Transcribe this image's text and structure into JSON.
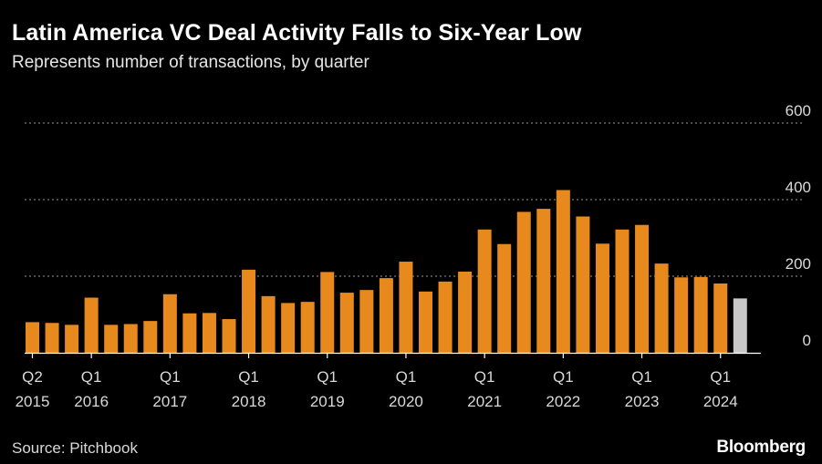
{
  "header": {
    "title": "Latin America VC Deal Activity Falls to Six-Year Low",
    "subtitle": "Represents number of transactions, by quarter"
  },
  "footer": {
    "source": "Source: Pitchbook",
    "logo": "Bloomberg"
  },
  "colors": {
    "bar": "#e8891d",
    "bar_latest": "#c8c8c8",
    "grid": "#666666",
    "axis": "#ffffff",
    "background": "#000000"
  },
  "chart_data": {
    "type": "bar",
    "title": "Latin America VC Deal Activity Falls to Six-Year Low",
    "subtitle": "Represents number of transactions, by quarter",
    "xlabel": "",
    "ylabel": "",
    "ylim": [
      0,
      600
    ],
    "y_ticks": [
      0,
      200,
      400,
      600
    ],
    "y_axis_side": "right",
    "grid": "horizontal dotted",
    "categories": [
      "Q2 2015",
      "Q3 2015",
      "Q4 2015",
      "Q1 2016",
      "Q2 2016",
      "Q3 2016",
      "Q4 2016",
      "Q1 2017",
      "Q2 2017",
      "Q3 2017",
      "Q4 2017",
      "Q1 2018",
      "Q2 2018",
      "Q3 2018",
      "Q4 2018",
      "Q1 2019",
      "Q2 2019",
      "Q3 2019",
      "Q4 2019",
      "Q1 2020",
      "Q2 2020",
      "Q3 2020",
      "Q4 2020",
      "Q1 2021",
      "Q2 2021",
      "Q3 2021",
      "Q4 2021",
      "Q1 2022",
      "Q2 2022",
      "Q3 2022",
      "Q4 2022",
      "Q1 2023",
      "Q2 2023",
      "Q3 2023",
      "Q4 2023",
      "Q1 2024",
      "Q2 2024"
    ],
    "values": [
      80,
      78,
      73,
      144,
      73,
      75,
      83,
      153,
      103,
      104,
      88,
      217,
      148,
      130,
      133,
      211,
      157,
      164,
      195,
      238,
      160,
      186,
      212,
      322,
      284,
      368,
      376,
      425,
      356,
      285,
      322,
      334,
      233,
      197,
      198,
      181,
      142
    ],
    "highlight_last": true,
    "x_tick_labels": [
      {
        "index": 0,
        "quarter": "Q2",
        "year": "2015"
      },
      {
        "index": 3,
        "quarter": "Q1",
        "year": "2016"
      },
      {
        "index": 7,
        "quarter": "Q1",
        "year": "2017"
      },
      {
        "index": 11,
        "quarter": "Q1",
        "year": "2018"
      },
      {
        "index": 15,
        "quarter": "Q1",
        "year": "2019"
      },
      {
        "index": 19,
        "quarter": "Q1",
        "year": "2020"
      },
      {
        "index": 23,
        "quarter": "Q1",
        "year": "2021"
      },
      {
        "index": 27,
        "quarter": "Q1",
        "year": "2022"
      },
      {
        "index": 31,
        "quarter": "Q1",
        "year": "2023"
      },
      {
        "index": 35,
        "quarter": "Q1",
        "year": "2024"
      }
    ]
  }
}
